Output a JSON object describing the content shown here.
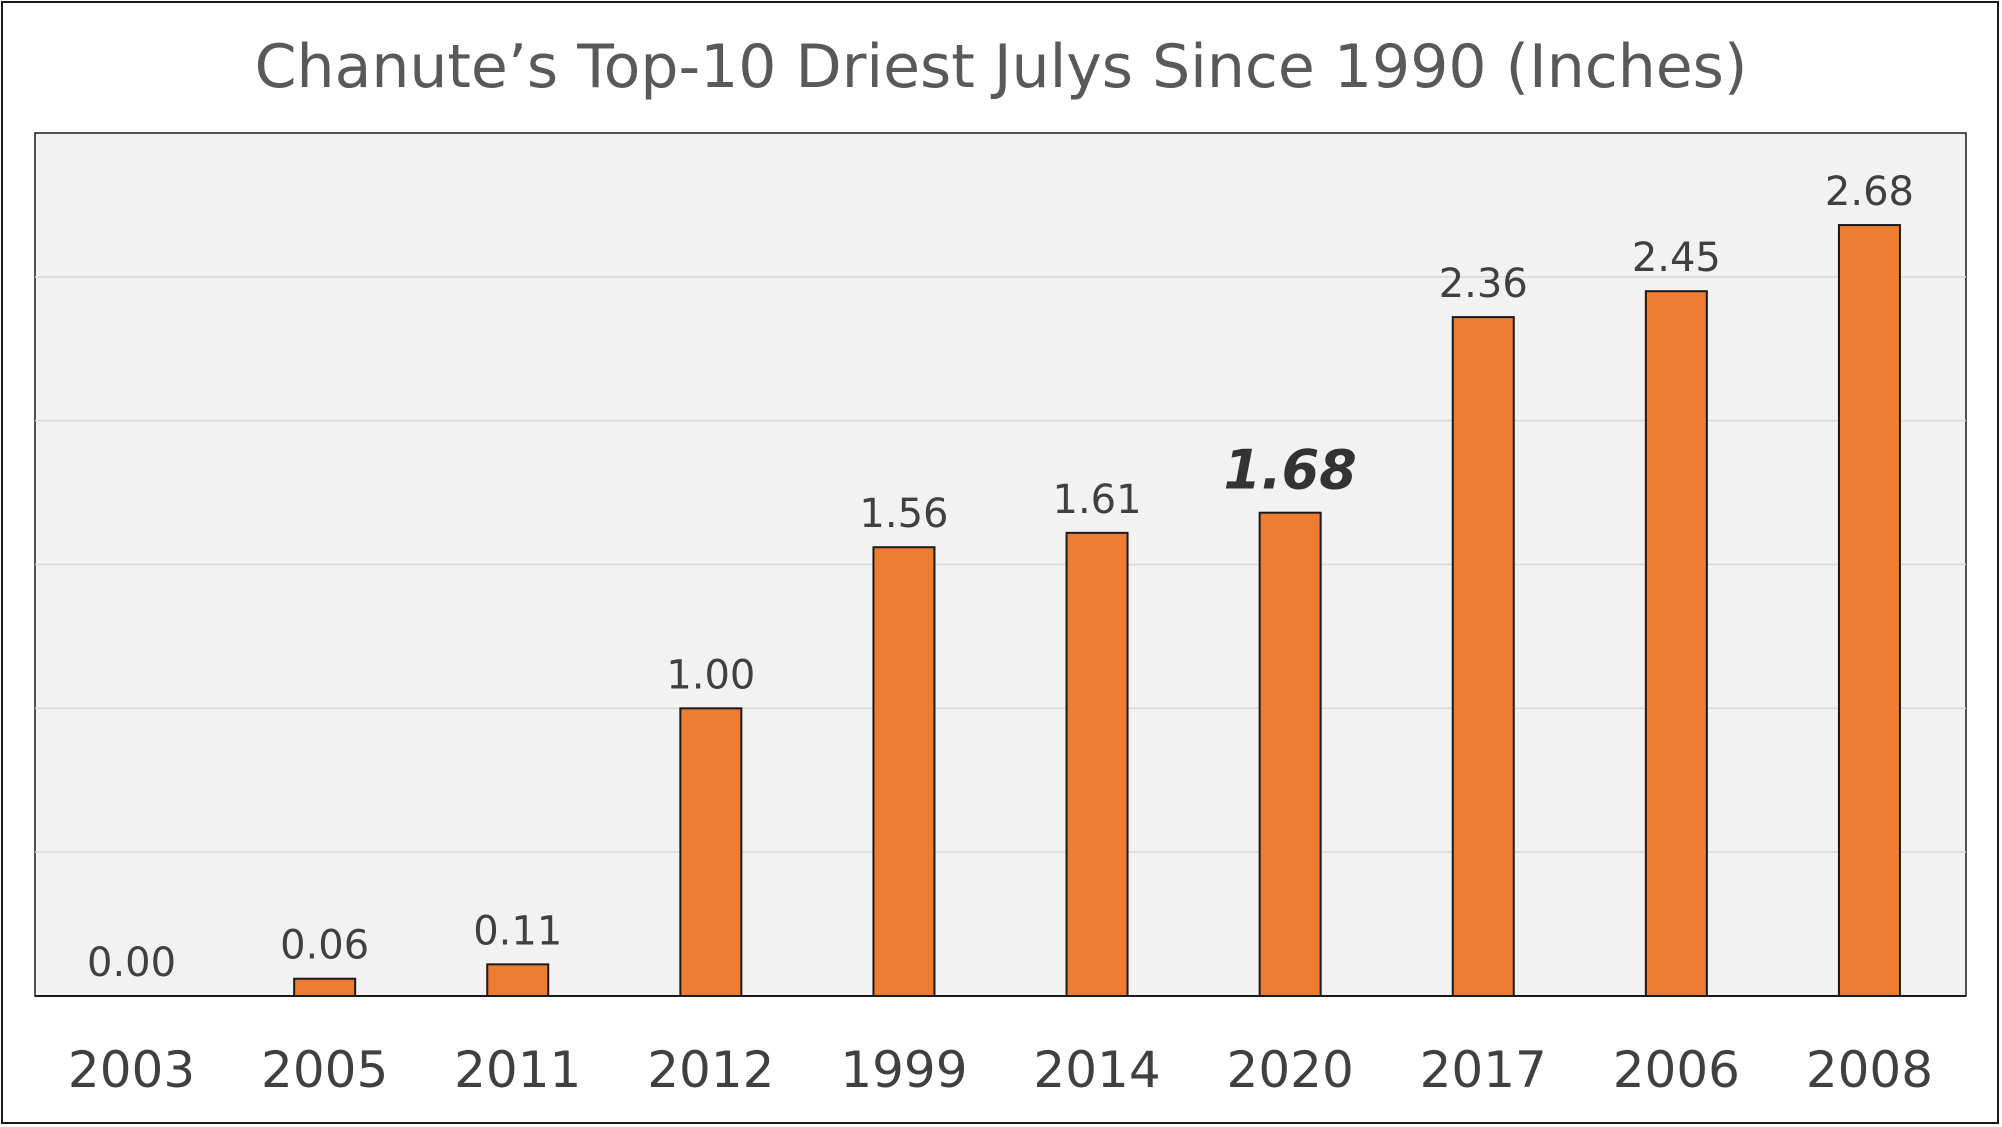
{
  "chart_data": {
    "type": "bar",
    "title": "Chanute’s Top-10 Driest Julys Since 1990 (Inches)",
    "xlabel": "",
    "ylabel": "",
    "categories": [
      "2003",
      "2005",
      "2011",
      "2012",
      "1999",
      "2014",
      "2020",
      "2017",
      "2006",
      "2008"
    ],
    "values": [
      0.0,
      0.06,
      0.11,
      1.0,
      1.56,
      1.61,
      1.68,
      2.36,
      2.45,
      2.68
    ],
    "data_labels": [
      "0.00",
      "0.06",
      "0.11",
      "1.00",
      "1.56",
      "1.61",
      "1.68",
      "2.36",
      "2.45",
      "2.68"
    ],
    "highlight_category": "2020",
    "ylim": [
      0,
      3.0
    ],
    "y_gridlines": [
      0.5,
      1.0,
      1.5,
      2.0,
      2.5
    ],
    "y_tick_labels_shown": false,
    "grid": true,
    "legend": "none",
    "colors": {
      "bar_fill": "#ED7D31",
      "bar_stroke": "#1a1a1a",
      "plot_background": "#F2F2F2",
      "gridline": "#D9D9D9",
      "text": "#404040",
      "title": "#595959"
    }
  }
}
